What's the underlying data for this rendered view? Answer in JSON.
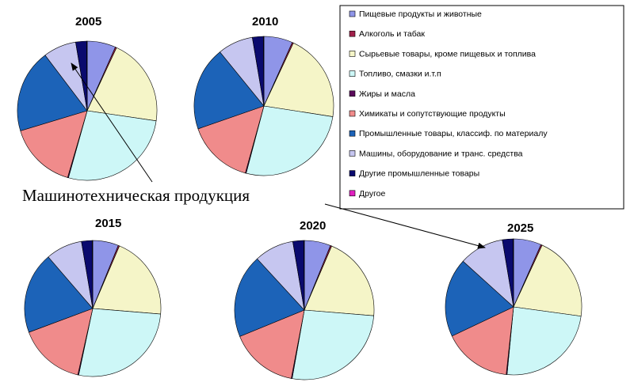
{
  "chart_data": {
    "type": "pie",
    "categories": [
      "Пищевые продукты и животные",
      "Алкоголь и табак",
      "Сырьевые товары, кроме пищевых и топлива",
      "Топливо, смазки и.т.п",
      "Жиры и масла",
      "Химикаты и сопутствующие продукты",
      "Промышленные товары, классиф. по материалу",
      "Машины, оборудование и транс. средства",
      "Другие промышленные товары",
      "Другое"
    ],
    "colors": [
      "#8f95e8",
      "#a0204a",
      "#f5f5c8",
      "#cdf7f7",
      "#5a0a5a",
      "#f08b8b",
      "#1c63b8",
      "#c6c6f0",
      "#0a0a6e",
      "#e020c0"
    ],
    "legend_position": "top-right",
    "pies": [
      {
        "year": "2005",
        "values": [
          6.5,
          0.3,
          20.0,
          26.5,
          0.2,
          15.5,
          19.0,
          7.5,
          2.5,
          0.1
        ]
      },
      {
        "year": "2010",
        "values": [
          6.5,
          0.3,
          20.0,
          26.0,
          0.2,
          15.0,
          19.0,
          8.0,
          2.5,
          0.1
        ]
      },
      {
        "year": "2015",
        "values": [
          6.0,
          0.3,
          19.5,
          26.5,
          0.2,
          15.5,
          19.0,
          8.5,
          2.5,
          0.1
        ]
      },
      {
        "year": "2020",
        "values": [
          6.0,
          0.3,
          19.5,
          26.0,
          0.2,
          15.5,
          19.0,
          9.0,
          2.5,
          0.1
        ]
      },
      {
        "year": "2025",
        "values": [
          6.5,
          0.3,
          20.0,
          24.0,
          0.2,
          16.0,
          18.5,
          10.5,
          2.5,
          0.1
        ]
      }
    ],
    "annotation": "Машинотехническая продукция"
  }
}
